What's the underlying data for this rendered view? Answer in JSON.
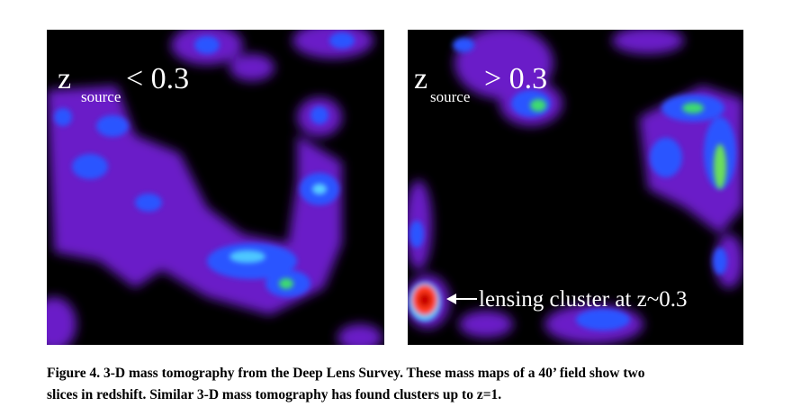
{
  "panels": [
    {
      "var": "z",
      "sub": "source",
      "relation": "< 0.3"
    },
    {
      "var": "z",
      "sub": "source",
      "relation": "> 0.3",
      "annotation": "lensing cluster at z~0.3"
    }
  ],
  "caption": [
    "Figure 4. 3-D mass tomography from the Deep Lens Survey. These mass maps of a 40’ field show two",
    "slices in redshift. Similar 3-D mass tomography has found clusters up to z=1."
  ]
}
